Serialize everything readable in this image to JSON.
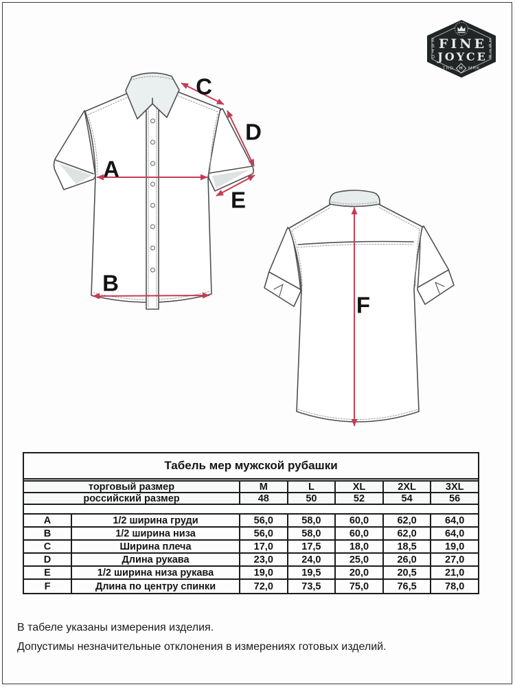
{
  "logo": {
    "name_line1": "FINE",
    "name_line2": "JOYCE",
    "estd": "ESTD",
    "year": "1978",
    "trd": "TRD",
    "mrk": "MRK",
    "monogram": "H"
  },
  "diagram": {
    "arrow_color": "#c63b54",
    "labels": {
      "A": "A",
      "B": "B",
      "C": "C",
      "D": "D",
      "E": "E",
      "F": "F"
    }
  },
  "chart_data": {
    "type": "table",
    "title": "Табель мер мужской рубашки",
    "header_rows": [
      {
        "label": "торговый размер",
        "values": [
          "M",
          "L",
          "XL",
          "2XL",
          "3XL"
        ]
      },
      {
        "label": "российский размер",
        "values": [
          "48",
          "50",
          "52",
          "54",
          "56"
        ]
      }
    ],
    "rows": [
      {
        "key": "A",
        "name": "1/2 ширина груди",
        "values": [
          "56,0",
          "58,0",
          "60,0",
          "62,0",
          "64,0"
        ]
      },
      {
        "key": "B",
        "name": "1/2 ширина низа",
        "values": [
          "56,0",
          "58,0",
          "60,0",
          "62,0",
          "64,0"
        ]
      },
      {
        "key": "C",
        "name": "Ширина плеча",
        "values": [
          "17,0",
          "17,5",
          "18,0",
          "18,5",
          "19,0"
        ]
      },
      {
        "key": "D",
        "name": "Длина рукава",
        "values": [
          "23,0",
          "24,0",
          "25,0",
          "26,0",
          "27,0"
        ]
      },
      {
        "key": "E",
        "name": "1/2 ширина низа рукава",
        "values": [
          "19,0",
          "19,5",
          "20,0",
          "20,5",
          "21,0"
        ]
      },
      {
        "key": "F",
        "name": "Длина по центру спинки",
        "values": [
          "72,0",
          "73,5",
          "75,0",
          "76,5",
          "78,0"
        ]
      }
    ]
  },
  "footer": {
    "line1": "В табеле указаны измерения изделия.",
    "line2": "Допустимы незначительные отклонения в измерениях готовых изделий."
  }
}
